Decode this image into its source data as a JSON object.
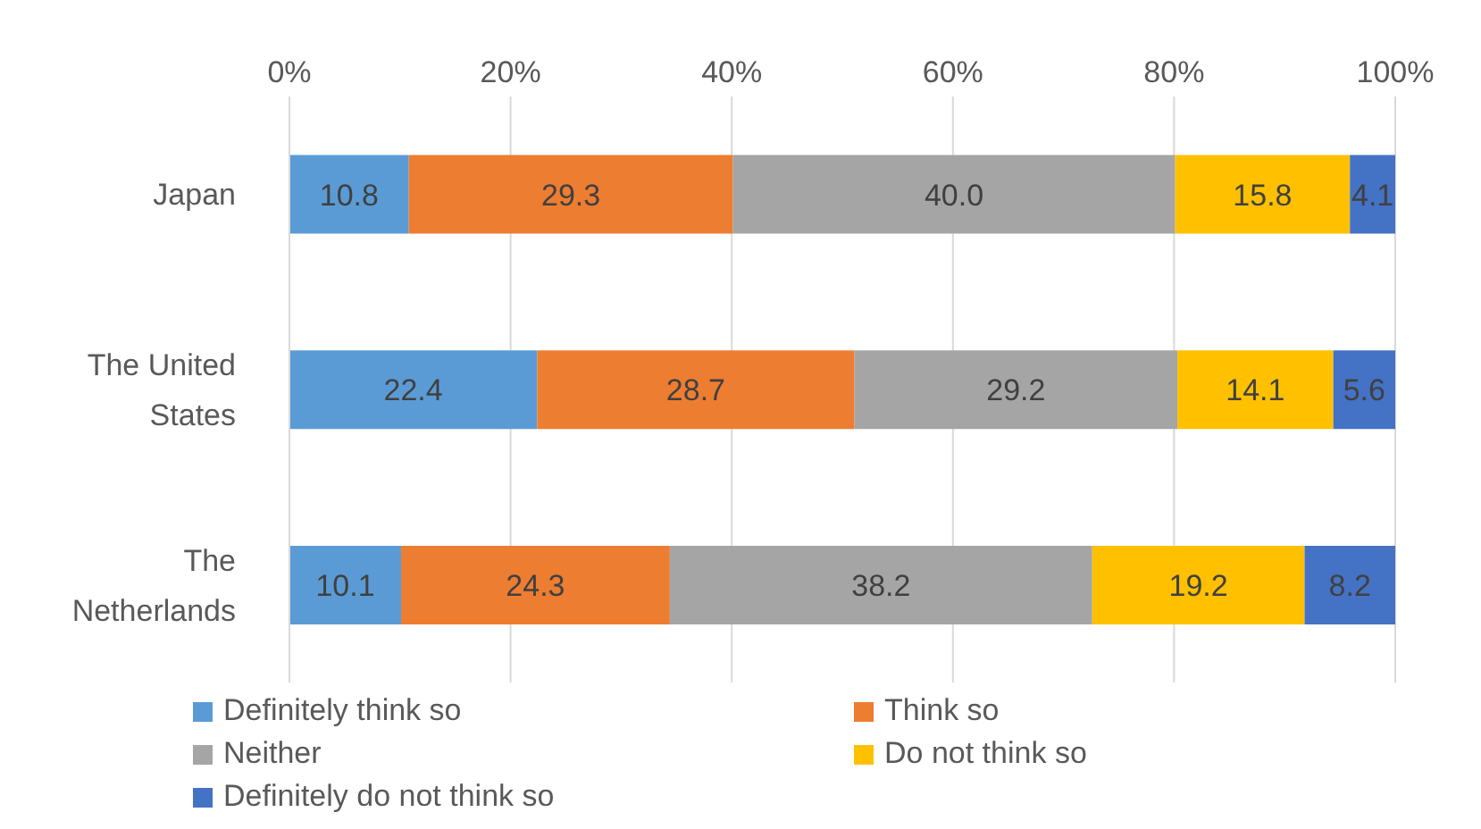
{
  "chart_data": {
    "type": "bar",
    "orientation": "horizontal",
    "stacked": true,
    "categories": [
      "Japan",
      "The United States",
      "The Netherlands"
    ],
    "series": [
      {
        "name": "Definitely think so",
        "color": "#5b9bd5",
        "values": [
          10.8,
          22.4,
          10.1
        ],
        "value_labels": [
          "10.8",
          "22.4",
          "10.1"
        ]
      },
      {
        "name": "Think so",
        "color": "#ed7d31",
        "values": [
          29.3,
          28.7,
          24.3
        ],
        "value_labels": [
          "29.3",
          "28.7",
          "24.3"
        ]
      },
      {
        "name": "Neither",
        "color": "#a5a5a5",
        "values": [
          40,
          29.2,
          38.2
        ],
        "value_labels": [
          "40.0",
          "29.2",
          "38.2"
        ]
      },
      {
        "name": "Do not think so",
        "color": "#ffc000",
        "values": [
          15.8,
          14.1,
          19.2
        ],
        "value_labels": [
          "15.8",
          "14.1",
          "19.2"
        ]
      },
      {
        "name": "Definitely do not think so",
        "color": "#4472c4",
        "values": [
          4.1,
          5.6,
          8.2
        ],
        "value_labels": [
          "4.1",
          "5.6",
          "8.2"
        ]
      }
    ],
    "xlim": [
      0,
      100
    ],
    "xticks": [
      {
        "value": 0,
        "label": "0%"
      },
      {
        "value": 20,
        "label": "20%"
      },
      {
        "value": 40,
        "label": "40%"
      },
      {
        "value": 60,
        "label": "60%"
      },
      {
        "value": 80,
        "label": "80%"
      },
      {
        "value": 100,
        "label": "100%"
      }
    ],
    "grid": "x",
    "legend": "bottom"
  }
}
